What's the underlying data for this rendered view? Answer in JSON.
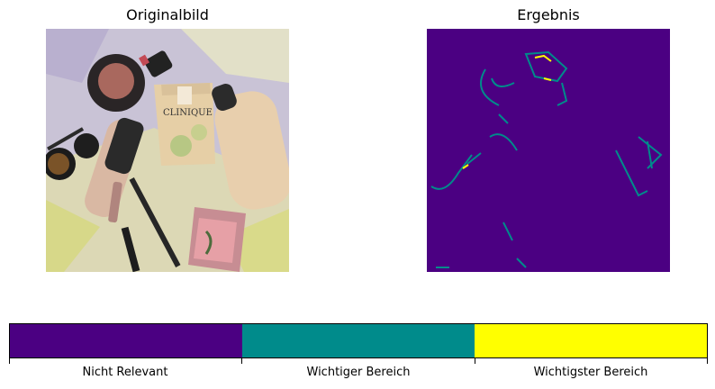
{
  "left_panel": {
    "title": "Originalbild",
    "brand_text": "CLINIQUE"
  },
  "right_panel": {
    "title": "Ergebnis"
  },
  "chart_data": {
    "type": "heatmap",
    "titles": [
      "Originalbild",
      "Ergebnis"
    ],
    "colorbar": {
      "orientation": "horizontal",
      "categories": [
        "Nicht Relevant",
        "Wichtiger Bereich",
        "Wichtigster Bereich"
      ],
      "colors": [
        "#4b0082",
        "#008b8b",
        "#ffff00"
      ]
    },
    "background_color": "#4b0082",
    "grid": false
  }
}
